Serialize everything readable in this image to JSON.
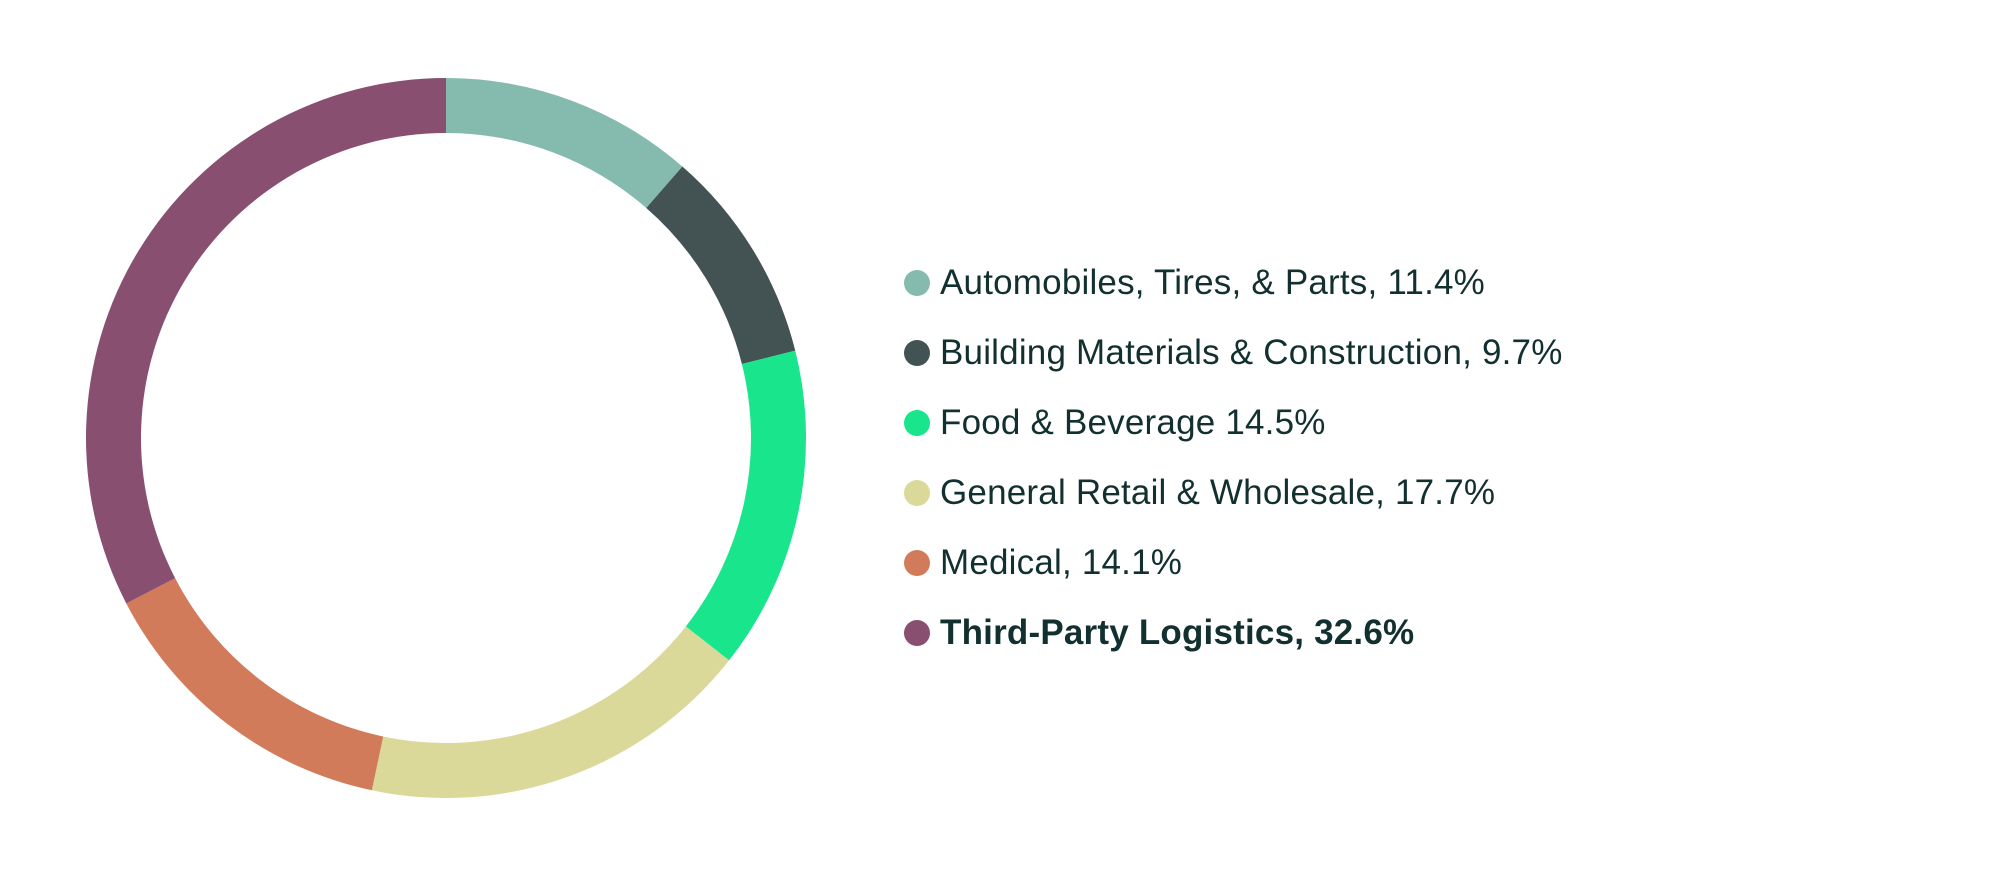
{
  "chart_data": {
    "type": "pie",
    "variant": "donut",
    "title": "",
    "legend_position": "right",
    "slices": [
      {
        "label": "Automobiles, Tires, & Parts, 11.4%",
        "value": 11.4,
        "color": "#84bbae",
        "emphasis": false
      },
      {
        "label": "Building Materials & Construction, 9.7%",
        "value": 9.7,
        "color": "#435253",
        "emphasis": false
      },
      {
        "label": "Food & Beverage 14.5%",
        "value": 14.5,
        "color": "#19e68c",
        "emphasis": false
      },
      {
        "label": "General Retail & Wholesale, 17.7%",
        "value": 17.7,
        "color": "#dbd99a",
        "emphasis": false
      },
      {
        "label": "Medical, 14.1%",
        "value": 14.1,
        "color": "#d27b5b",
        "emphasis": false
      },
      {
        "label": "Third-Party Logistics, 32.6%",
        "value": 32.6,
        "color": "#884f71",
        "emphasis": true
      }
    ]
  }
}
